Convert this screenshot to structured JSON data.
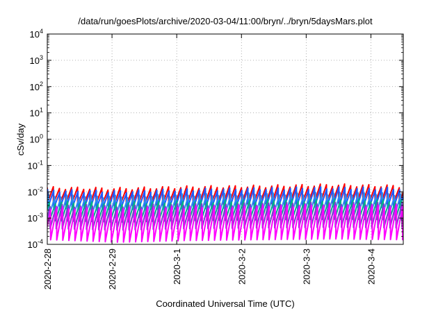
{
  "chart_data": {
    "type": "line",
    "title": "/data/run/goesPlots/archive/2020-03-04/11:00/bryn/../bryn/5daysMars.plot",
    "xlabel": "Coordinated Universal Time (UTC)",
    "ylabel": "cSv/day",
    "yscale": "log",
    "ylim": [
      0.0001,
      10000
    ],
    "xlim": [
      "2020-02-28 00:00",
      "2020-03-04 12:00"
    ],
    "grid": true,
    "legend": "none",
    "x_ticks": [
      "2020-2-28",
      "2020-2-29",
      "2020-3-1",
      "2020-3-2",
      "2020-3-3",
      "2020-3-4"
    ],
    "y_ticks": [
      {
        "value": 0.0001,
        "base": "10",
        "exp": "-4"
      },
      {
        "value": 0.001,
        "base": "10",
        "exp": "-3"
      },
      {
        "value": 0.01,
        "base": "10",
        "exp": "-2"
      },
      {
        "value": 0.1,
        "base": "10",
        "exp": "-1"
      },
      {
        "value": 1,
        "base": "10",
        "exp": "0"
      },
      {
        "value": 10,
        "base": "10",
        "exp": "1"
      },
      {
        "value": 100,
        "base": "10",
        "exp": "2"
      },
      {
        "value": 1000,
        "base": "10",
        "exp": "3"
      },
      {
        "value": 10000,
        "base": "10",
        "exp": "4"
      }
    ],
    "sawtooth_period_hours": 2.25,
    "series": [
      {
        "color": "#ff0000",
        "phase_hours": 0.0,
        "peak": [
          0.014,
          0.013,
          0.015,
          0.016,
          0.018,
          0.016
        ],
        "trough": [
          0.0035,
          0.003,
          0.0033,
          0.0035,
          0.0038,
          0.0035
        ]
      },
      {
        "color": "#1e5aff",
        "phase_hours": 0.15,
        "peak": [
          0.011,
          0.01,
          0.012,
          0.013,
          0.014,
          0.013
        ],
        "trough": [
          0.0024,
          0.0021,
          0.0023,
          0.0025,
          0.0027,
          0.0025
        ]
      },
      {
        "color": "#2d8cf0",
        "phase_hours": 0.55,
        "peak": [
          0.007,
          0.0065,
          0.0075,
          0.008,
          0.0085,
          0.008
        ],
        "trough": [
          0.0011,
          0.001,
          0.0011,
          0.0012,
          0.0013,
          0.0012
        ]
      },
      {
        "color": "#00b08a",
        "phase_hours": 0.8,
        "peak": [
          0.004,
          0.0037,
          0.0042,
          0.0045,
          0.0048,
          0.0045
        ],
        "trough": [
          0.0008,
          0.0007,
          0.0008,
          0.00085,
          0.0009,
          0.00085
        ]
      },
      {
        "color": "#7a3fc8",
        "phase_hours": 1.05,
        "peak": [
          0.003,
          0.0028,
          0.0032,
          0.0034,
          0.0036,
          0.0034
        ],
        "trough": [
          0.0004,
          0.00035,
          0.0004,
          0.00042,
          0.00045,
          0.00042
        ]
      },
      {
        "color": "#ff00ff",
        "phase_hours": 1.25,
        "peak": [
          0.0025,
          0.0022,
          0.0026,
          0.0028,
          0.003,
          0.0028
        ],
        "trough": [
          0.00015,
          0.00012,
          0.00014,
          0.00015,
          0.00016,
          0.00015
        ]
      }
    ]
  }
}
